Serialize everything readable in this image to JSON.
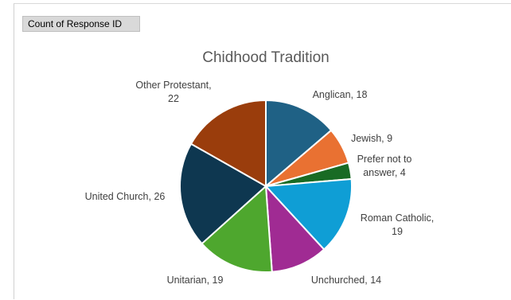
{
  "field_button": {
    "label": "Count of Response ID"
  },
  "chart_data": {
    "type": "pie",
    "title": "Chidhood Tradition",
    "slices": [
      {
        "name": "Anglican",
        "value": 18,
        "color": "#1f6185",
        "label_lines": [
          "Anglican, 18"
        ]
      },
      {
        "name": "Jewish",
        "value": 9,
        "color": "#e97132",
        "label_lines": [
          "Jewish, 9"
        ]
      },
      {
        "name": "Prefer not to answer",
        "value": 4,
        "color": "#196b24",
        "label_lines": [
          "Prefer not to",
          "answer, 4"
        ]
      },
      {
        "name": "Roman Catholic",
        "value": 19,
        "color": "#0f9ed5",
        "label_lines": [
          "Roman Catholic,",
          "19"
        ]
      },
      {
        "name": "Unchurched",
        "value": 14,
        "color": "#a02b93",
        "label_lines": [
          "Unchurched, 14"
        ]
      },
      {
        "name": "Unitarian",
        "value": 19,
        "color": "#4ea72e",
        "label_lines": [
          "Unitarian, 19"
        ]
      },
      {
        "name": "United Church",
        "value": 26,
        "color": "#0e3750",
        "label_lines": [
          "United Church, 26"
        ]
      },
      {
        "name": "Other Protestant",
        "value": 22,
        "color": "#9a3d0c",
        "label_lines": [
          "Other Protestant,",
          "22"
        ]
      }
    ]
  }
}
